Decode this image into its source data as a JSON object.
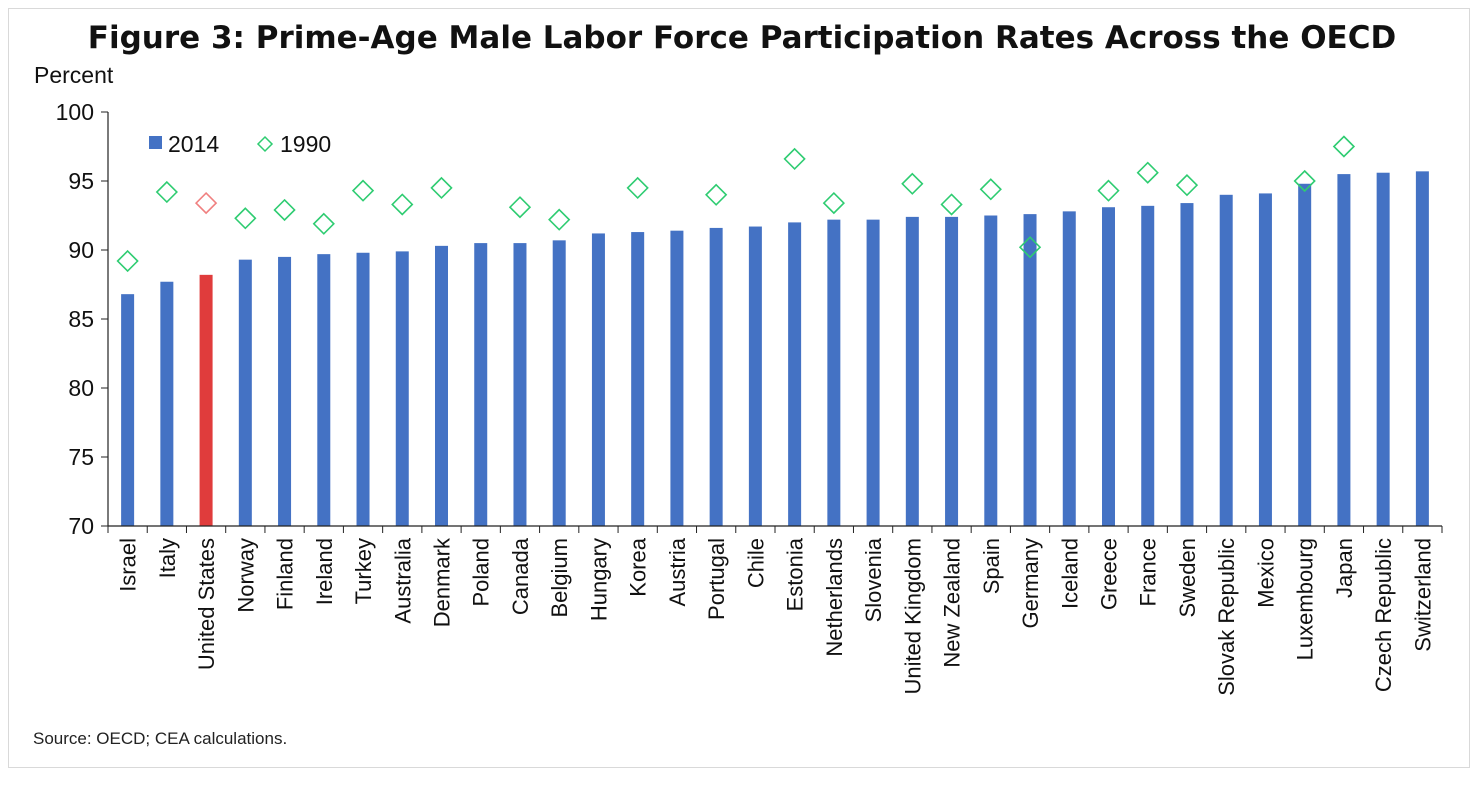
{
  "title": "Figure 3: Prime-Age Male Labor Force Participation Rates Across the OECD",
  "source": "Source: OECD; CEA calculations.",
  "chart_data": {
    "type": "bar",
    "ylabel": "Percent",
    "ylim": [
      70,
      100
    ],
    "yticks": [
      70,
      75,
      80,
      85,
      90,
      95,
      100
    ],
    "grid": false,
    "legend_position": "top-left",
    "categories": [
      "Israel",
      "Italy",
      "United States",
      "Norway",
      "Finland",
      "Ireland",
      "Turkey",
      "Australia",
      "Denmark",
      "Poland",
      "Canada",
      "Belgium",
      "Hungary",
      "Korea",
      "Austria",
      "Portugal",
      "Chile",
      "Estonia",
      "Netherlands",
      "Slovenia",
      "United Kingdom",
      "New Zealand",
      "Spain",
      "Germany",
      "Iceland",
      "Greece",
      "France",
      "Sweden",
      "Slovak Republic",
      "Mexico",
      "Luxembourg",
      "Japan",
      "Czech Republic",
      "Switzerland"
    ],
    "highlight_category": "United States",
    "series": [
      {
        "name": "2014",
        "type": "bar",
        "color": "#4472c4",
        "highlight_color": "#e03c3c",
        "values": [
          86.8,
          87.7,
          88.2,
          89.3,
          89.5,
          89.7,
          89.8,
          89.9,
          90.3,
          90.5,
          90.5,
          90.7,
          91.2,
          91.3,
          91.4,
          91.6,
          91.7,
          92.0,
          92.2,
          92.2,
          92.4,
          92.4,
          92.5,
          92.6,
          92.8,
          93.1,
          93.2,
          93.4,
          94.0,
          94.1,
          94.8,
          95.5,
          95.6,
          95.7
        ]
      },
      {
        "name": "1990",
        "type": "scatter",
        "marker": "diamond-open",
        "color": "#2ecc71",
        "highlight_color": "#f08080",
        "values": [
          89.2,
          94.2,
          93.4,
          92.3,
          92.9,
          91.9,
          94.3,
          93.3,
          94.5,
          null,
          93.1,
          92.2,
          null,
          94.5,
          null,
          94.0,
          null,
          96.6,
          93.4,
          null,
          94.8,
          93.3,
          94.4,
          90.2,
          null,
          94.3,
          95.6,
          94.7,
          null,
          null,
          95.0,
          97.5,
          null,
          null
        ]
      }
    ]
  }
}
